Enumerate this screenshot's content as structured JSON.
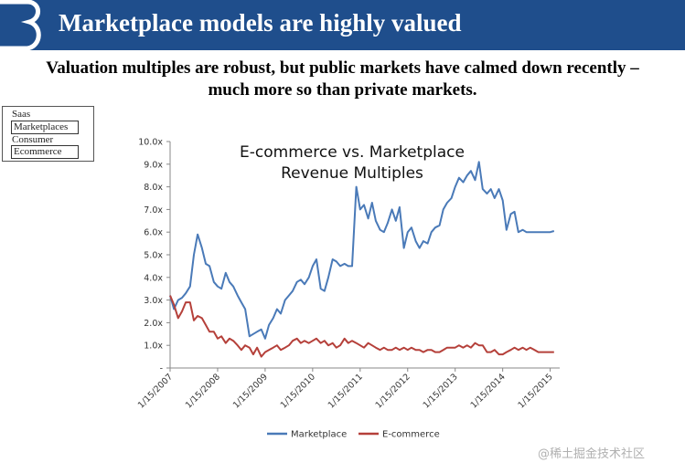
{
  "header": {
    "title": "Marketplace models are highly valued",
    "banner_color": "#1f4e8c"
  },
  "subtitle": {
    "line1": "Valuation multiples are robust, but public markets have calmed down recently –",
    "line2": "much more so than private markets."
  },
  "nav": {
    "items": [
      {
        "label": "Saas",
        "boxed": false
      },
      {
        "label": "Marketplaces",
        "boxed": true
      },
      {
        "label": "Consumer",
        "boxed": false
      },
      {
        "label": "Ecommerce",
        "boxed": true
      }
    ]
  },
  "chart_data": {
    "type": "line",
    "title_line1": "E-commerce vs. Marketplace",
    "title_line2": "Revenue Multiples",
    "ylim": [
      0,
      10
    ],
    "yticks": [
      "-",
      "1.0x",
      "2.0x",
      "3.0x",
      "4.0x",
      "5.0x",
      "6.0x",
      "7.0x",
      "8.0x",
      "9.0x",
      "10.0x"
    ],
    "xlim": [
      2007.0,
      2015.2
    ],
    "xticks": [
      {
        "label": "1/15/2007",
        "value": 2007.0
      },
      {
        "label": "1/15/2008",
        "value": 2008.0
      },
      {
        "label": "1/15/2009",
        "value": 2009.0
      },
      {
        "label": "1/15/2010",
        "value": 2010.0
      },
      {
        "label": "1/15/2011",
        "value": 2011.0
      },
      {
        "label": "1/15/2012",
        "value": 2012.0
      },
      {
        "label": "1/15/2013",
        "value": 2013.0
      },
      {
        "label": "1/15/2014",
        "value": 2014.0
      },
      {
        "label": "1/15/2015",
        "value": 2015.0
      }
    ],
    "series": [
      {
        "name": "Marketplace",
        "color": "#4a7ab8",
        "x": [
          2007.0,
          2007.08,
          2007.17,
          2007.25,
          2007.33,
          2007.42,
          2007.5,
          2007.58,
          2007.67,
          2007.75,
          2007.83,
          2007.92,
          2008.0,
          2008.08,
          2008.17,
          2008.25,
          2008.33,
          2008.42,
          2008.5,
          2008.58,
          2008.67,
          2008.75,
          2008.83,
          2008.92,
          2009.0,
          2009.08,
          2009.17,
          2009.25,
          2009.33,
          2009.42,
          2009.5,
          2009.58,
          2009.67,
          2009.75,
          2009.83,
          2009.92,
          2010.0,
          2010.08,
          2010.17,
          2010.25,
          2010.33,
          2010.42,
          2010.5,
          2010.58,
          2010.67,
          2010.75,
          2010.83,
          2010.92,
          2011.0,
          2011.08,
          2011.17,
          2011.25,
          2011.33,
          2011.42,
          2011.5,
          2011.58,
          2011.67,
          2011.75,
          2011.83,
          2011.92,
          2012.0,
          2012.08,
          2012.17,
          2012.25,
          2012.33,
          2012.42,
          2012.5,
          2012.58,
          2012.67,
          2012.75,
          2012.83,
          2012.92,
          2013.0,
          2013.08,
          2013.17,
          2013.25,
          2013.33,
          2013.42,
          2013.5,
          2013.58,
          2013.67,
          2013.75,
          2013.83,
          2013.92,
          2014.0,
          2014.08,
          2014.17,
          2014.25,
          2014.33,
          2014.42,
          2014.5,
          2014.58,
          2014.67,
          2014.75,
          2014.83,
          2014.92,
          2015.0,
          2015.08
        ],
        "values": [
          3.2,
          2.6,
          3.0,
          3.1,
          3.3,
          3.6,
          5.0,
          5.9,
          5.3,
          4.6,
          4.5,
          3.8,
          3.6,
          3.5,
          4.2,
          3.8,
          3.6,
          3.2,
          2.9,
          2.6,
          1.4,
          1.5,
          1.6,
          1.7,
          1.3,
          1.9,
          2.2,
          2.6,
          2.4,
          3.0,
          3.2,
          3.4,
          3.8,
          3.9,
          3.7,
          4.0,
          4.5,
          4.8,
          3.5,
          3.4,
          4.0,
          4.8,
          4.7,
          4.5,
          4.6,
          4.5,
          4.5,
          8.0,
          7.0,
          7.2,
          6.6,
          7.3,
          6.5,
          6.1,
          6.0,
          6.4,
          7.0,
          6.5,
          7.1,
          5.3,
          6.0,
          6.2,
          5.6,
          5.3,
          5.6,
          5.5,
          6.0,
          6.2,
          6.3,
          7.0,
          7.3,
          7.5,
          8.0,
          8.4,
          8.2,
          8.5,
          8.7,
          8.3,
          9.1,
          7.9,
          7.7,
          7.9,
          7.5,
          7.9,
          7.4,
          6.1,
          6.8,
          6.9,
          6.0,
          6.1,
          6.0,
          6.0,
          6.0,
          6.0,
          6.0,
          6.0,
          6.0,
          6.05
        ]
      },
      {
        "name": "E-commerce",
        "color": "#b5403a",
        "x": [
          2007.0,
          2007.08,
          2007.17,
          2007.25,
          2007.33,
          2007.42,
          2007.5,
          2007.58,
          2007.67,
          2007.75,
          2007.83,
          2007.92,
          2008.0,
          2008.08,
          2008.17,
          2008.25,
          2008.33,
          2008.42,
          2008.5,
          2008.58,
          2008.67,
          2008.75,
          2008.83,
          2008.92,
          2009.0,
          2009.08,
          2009.17,
          2009.25,
          2009.33,
          2009.42,
          2009.5,
          2009.58,
          2009.67,
          2009.75,
          2009.83,
          2009.92,
          2010.0,
          2010.08,
          2010.17,
          2010.25,
          2010.33,
          2010.42,
          2010.5,
          2010.58,
          2010.67,
          2010.75,
          2010.83,
          2010.92,
          2011.0,
          2011.08,
          2011.17,
          2011.25,
          2011.33,
          2011.42,
          2011.5,
          2011.58,
          2011.67,
          2011.75,
          2011.83,
          2011.92,
          2012.0,
          2012.08,
          2012.17,
          2012.25,
          2012.33,
          2012.42,
          2012.5,
          2012.58,
          2012.67,
          2012.75,
          2012.83,
          2012.92,
          2013.0,
          2013.08,
          2013.17,
          2013.25,
          2013.33,
          2013.42,
          2013.5,
          2013.58,
          2013.67,
          2013.75,
          2013.83,
          2013.92,
          2014.0,
          2014.08,
          2014.17,
          2014.25,
          2014.33,
          2014.42,
          2014.5,
          2014.58,
          2014.67,
          2014.75,
          2014.83,
          2014.92,
          2015.0,
          2015.08
        ],
        "values": [
          3.2,
          2.8,
          2.2,
          2.5,
          2.9,
          2.9,
          2.1,
          2.3,
          2.2,
          1.9,
          1.6,
          1.6,
          1.3,
          1.4,
          1.1,
          1.3,
          1.2,
          1.0,
          0.8,
          1.0,
          0.9,
          0.6,
          0.9,
          0.5,
          0.7,
          0.8,
          0.9,
          1.0,
          0.8,
          0.9,
          1.0,
          1.2,
          1.3,
          1.1,
          1.2,
          1.1,
          1.2,
          1.3,
          1.1,
          1.2,
          1.0,
          1.1,
          0.9,
          1.0,
          1.3,
          1.1,
          1.2,
          1.1,
          1.0,
          0.9,
          1.1,
          1.0,
          0.9,
          0.8,
          0.9,
          0.8,
          0.8,
          0.9,
          0.8,
          0.9,
          0.8,
          0.9,
          0.8,
          0.8,
          0.7,
          0.8,
          0.8,
          0.7,
          0.7,
          0.8,
          0.9,
          0.9,
          0.9,
          1.0,
          0.9,
          1.0,
          0.9,
          1.1,
          1.0,
          1.0,
          0.7,
          0.7,
          0.8,
          0.6,
          0.6,
          0.7,
          0.8,
          0.9,
          0.8,
          0.9,
          0.8,
          0.9,
          0.8,
          0.7,
          0.7,
          0.7,
          0.7,
          0.7
        ]
      }
    ]
  },
  "watermark": "@稀土掘金技术社区"
}
